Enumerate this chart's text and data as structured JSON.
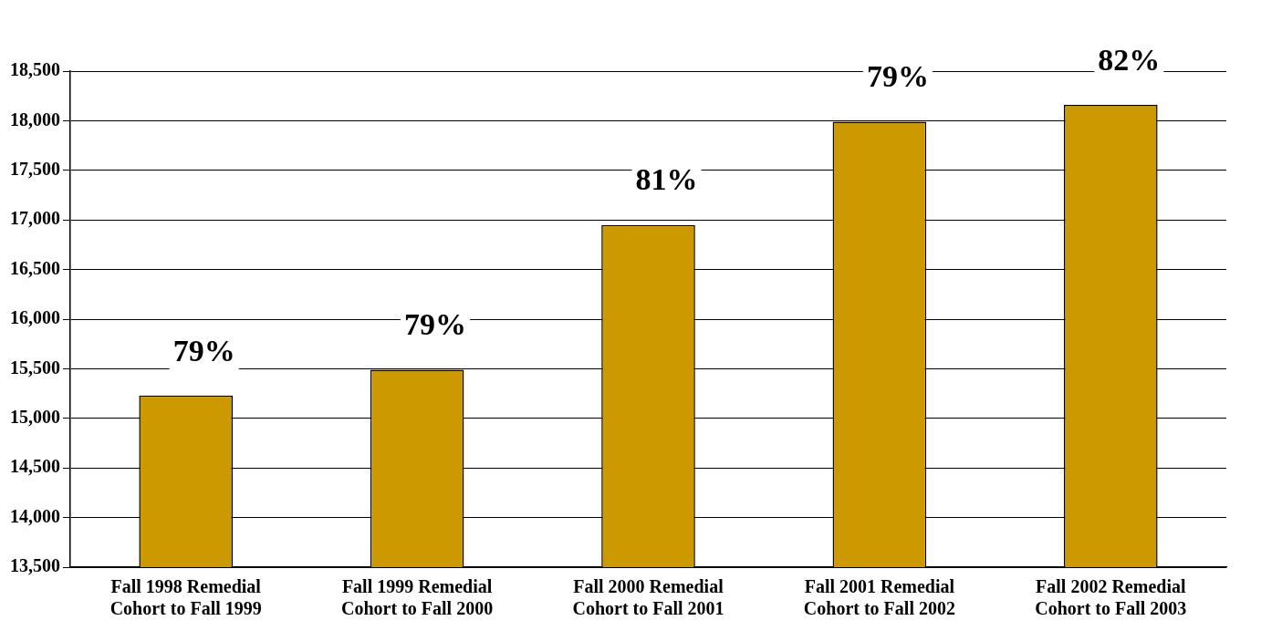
{
  "chart_data": {
    "type": "bar",
    "categories": [
      "Fall 1998 Remedial Cohort to Fall 1999",
      "Fall 1999 Remedial Cohort to Fall 2000",
      "Fall 2000 Remedial Cohort to Fall 2001",
      "Fall 2001 Remedial Cohort to Fall 2002",
      "Fall 2002 Remedial Cohort to Fall 2003"
    ],
    "values": [
      15230,
      15490,
      16950,
      17990,
      18160
    ],
    "color": "#cc9900",
    "annotations": [
      {
        "text": "79%",
        "x": "Fall 1998 Remedial Cohort to Fall 1999",
        "y": 15230
      },
      {
        "text": "79%",
        "x": "Fall 1999 Remedial Cohort to Fall 2000",
        "y": 15490
      },
      {
        "text": "81%",
        "x": "Fall 2000 Remedial Cohort to Fall 2001",
        "y": 16950
      },
      {
        "text": "79%",
        "x": "Fall 2001 Remedial Cohort to Fall 2002",
        "y": 17990
      },
      {
        "text": "82%",
        "x": "Fall 2002 Remedial Cohort to Fall 2003",
        "y": 18160
      }
    ],
    "ylim": [
      13500,
      18500
    ],
    "yticks": [
      {
        "value": 13500,
        "label": "13,500"
      },
      {
        "value": 14000,
        "label": "14,000"
      },
      {
        "value": 14500,
        "label": "14,500"
      },
      {
        "value": 15000,
        "label": "15,000"
      },
      {
        "value": 15500,
        "label": "15,500"
      },
      {
        "value": 16000,
        "label": "16,000"
      },
      {
        "value": 16500,
        "label": "16,500"
      },
      {
        "value": 17000,
        "label": "17,000"
      },
      {
        "value": 17500,
        "label": "17,500"
      },
      {
        "value": 18000,
        "label": "18,000"
      },
      {
        "value": 18500,
        "label": "18,500"
      }
    ],
    "grid": "y"
  }
}
